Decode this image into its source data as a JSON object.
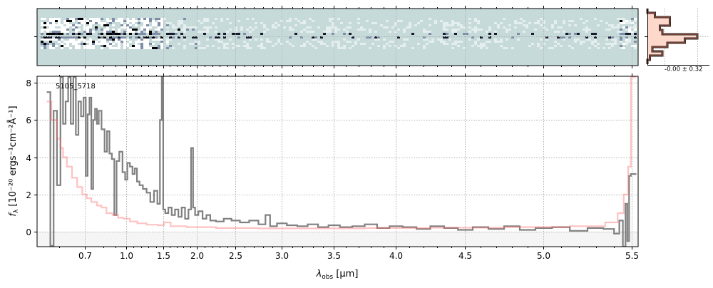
{
  "chart_data": [
    {
      "type": "heatmap",
      "panel": "2d-spectrum",
      "colormap": [
        "#ffffff",
        "#c6dada",
        "#7f8ea8",
        "#1a1a2e",
        "#000000"
      ],
      "background": "#c6dada"
    },
    {
      "type": "line",
      "panel": "1d-spectrum",
      "label": "5105_5718",
      "xlabel": "λobs [μm]",
      "xlabel_main": "λ",
      "xlabel_sub": "obs",
      "xlabel_unit": " [μm]",
      "ylabel": "fλ [10⁻²⁰ ergs⁻¹cm⁻²Å⁻¹]",
      "ylabel_main": "f",
      "ylabel_sub": "λ",
      "ylabel_unit": " [10⁻²⁰ ergs⁻¹cm⁻²Å⁻¹]",
      "xlim": [
        0.55,
        5.52
      ],
      "ylim": [
        -0.8,
        8.35
      ],
      "xticks": [
        "0.7",
        "1.0",
        "1.5",
        "2.0",
        "2.5",
        "3.0",
        "3.5",
        "4.0",
        "4.5",
        "5.0",
        "5.5"
      ],
      "yticks": [
        "0",
        "2",
        "4",
        "6",
        "8"
      ],
      "grid": true,
      "series": [
        {
          "role": "flux",
          "color": "#808080",
          "x": [
            0.575,
            0.585,
            0.59,
            0.6,
            0.61,
            0.62,
            0.63,
            0.64,
            0.65,
            0.66,
            0.67,
            0.68,
            0.69,
            0.7,
            0.71,
            0.72,
            0.73,
            0.74,
            0.75,
            0.76,
            0.77,
            0.78,
            0.8,
            0.82,
            0.84,
            0.86,
            0.88,
            0.9,
            0.92,
            0.95,
            0.98,
            1.0,
            1.03,
            1.07,
            1.1,
            1.13,
            1.16,
            1.2,
            1.25,
            1.3,
            1.35,
            1.4,
            1.44,
            1.47,
            1.49,
            1.51,
            1.55,
            1.6,
            1.65,
            1.7,
            1.75,
            1.8,
            1.85,
            1.9,
            1.93,
            1.96,
            1.99,
            2.05,
            2.1,
            2.15,
            2.2,
            2.3,
            2.4,
            2.5,
            2.6,
            2.7,
            2.8,
            2.85,
            2.9,
            3.0,
            3.1,
            3.2,
            3.3,
            3.4,
            3.5,
            3.6,
            3.7,
            3.8,
            3.9,
            4.0,
            4.1,
            4.2,
            4.3,
            4.4,
            4.5,
            4.6,
            4.7,
            4.8,
            4.9,
            5.0,
            5.1,
            5.2,
            5.3,
            5.38,
            5.42,
            5.44,
            5.46,
            5.47,
            5.48,
            5.49,
            5.5,
            5.51
          ],
          "y": [
            7.5,
            -0.75,
            6.5,
            2.5,
            8.3,
            5.8,
            7.0,
            8.3,
            5.8,
            8.3,
            5.2,
            7.0,
            6.2,
            7.2,
            3.0,
            6.3,
            7.2,
            2.3,
            6.0,
            6.6,
            5.8,
            6.5,
            5.5,
            4.3,
            5.4,
            4.2,
            3.9,
            0.9,
            3.8,
            4.3,
            3.2,
            2.8,
            3.7,
            3.5,
            3.1,
            3.4,
            2.7,
            2.5,
            2.3,
            2.1,
            1.6,
            2.2,
            1.5,
            6.0,
            8.3,
            1.2,
            1.0,
            1.3,
            0.9,
            1.2,
            0.8,
            1.3,
            0.7,
            1.2,
            4.5,
            1.3,
            0.9,
            1.1,
            0.7,
            0.9,
            0.6,
            0.55,
            0.7,
            0.6,
            0.5,
            0.6,
            0.4,
            0.9,
            0.3,
            0.45,
            0.35,
            0.3,
            0.4,
            0.25,
            0.35,
            0.25,
            0.3,
            0.4,
            0.2,
            0.3,
            0.25,
            0.15,
            0.3,
            0.2,
            0.1,
            0.25,
            0.15,
            0.3,
            0.1,
            0.2,
            0.25,
            0.05,
            0.2,
            0.15,
            -0.1,
            0.6,
            -0.8,
            1.5,
            -0.5,
            3.0,
            3.1,
            3.1
          ]
        },
        {
          "role": "error",
          "color": "#ff6666",
          "x": [
            0.575,
            0.59,
            0.6,
            0.61,
            0.62,
            0.64,
            0.66,
            0.68,
            0.7,
            0.72,
            0.75,
            0.78,
            0.8,
            0.85,
            0.9,
            0.95,
            1.0,
            1.1,
            1.2,
            1.35,
            1.5,
            1.52,
            1.7,
            2.0,
            2.5,
            3.0,
            3.5,
            4.0,
            4.5,
            5.0,
            5.3,
            5.4,
            5.44,
            5.47,
            5.49,
            5.5,
            5.51
          ],
          "y": [
            7.0,
            6.0,
            5.0,
            4.5,
            4.0,
            3.5,
            2.9,
            2.4,
            2.0,
            1.8,
            1.6,
            1.4,
            1.3,
            1.0,
            0.9,
            0.75,
            0.7,
            0.55,
            0.45,
            0.38,
            0.35,
            0.5,
            0.3,
            0.25,
            0.2,
            0.18,
            0.18,
            0.2,
            0.22,
            0.25,
            0.3,
            0.5,
            1.0,
            2.0,
            3.5,
            8.3,
            8.3
          ]
        }
      ]
    },
    {
      "type": "bar",
      "panel": "residual-histogram",
      "orientation": "horizontal",
      "annotation": "-0.00 ± 0.32",
      "bin_values": [
        0,
        0.15,
        0.45,
        0.45,
        0.25,
        0.3,
        1.0,
        0.75,
        0.4,
        0.1,
        0.3,
        0.05,
        0
      ],
      "fill_color": "#ffd8cc",
      "edge_color": "#8b4a3a"
    }
  ]
}
